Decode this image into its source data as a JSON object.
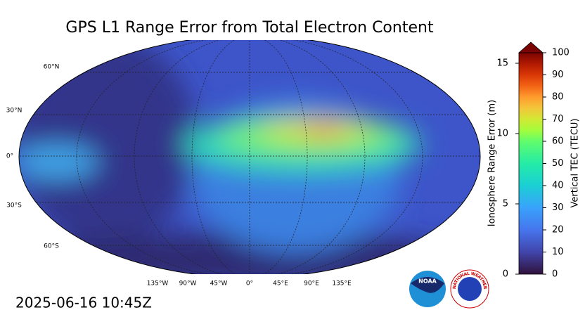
{
  "title": "GPS L1 Range Error from Total Electron Content",
  "timestamp": "2025-06-16 10:45Z",
  "map": {
    "lat_labels": [
      "60°N",
      "30°N",
      "0°",
      "30°S",
      "60°S"
    ],
    "lon_labels": [
      "135°W",
      "90°W",
      "45°W",
      "0°",
      "45°E",
      "90°E",
      "135°E"
    ]
  },
  "colorbar": {
    "range_label": "Ionosphere Range Error (m)",
    "range_lim": [
      0,
      15.75
    ],
    "range_ticks": [
      0,
      5,
      10,
      15
    ],
    "tec_label": "Vertical TEC (TECU)",
    "tec_lim": [
      0,
      100
    ],
    "tec_ticks": [
      0,
      10,
      20,
      30,
      40,
      50,
      60,
      70,
      80,
      90,
      100
    ]
  },
  "logos": {
    "noaa": "NOAA",
    "nws": "NATIONAL WEATHER SERVICE"
  }
}
